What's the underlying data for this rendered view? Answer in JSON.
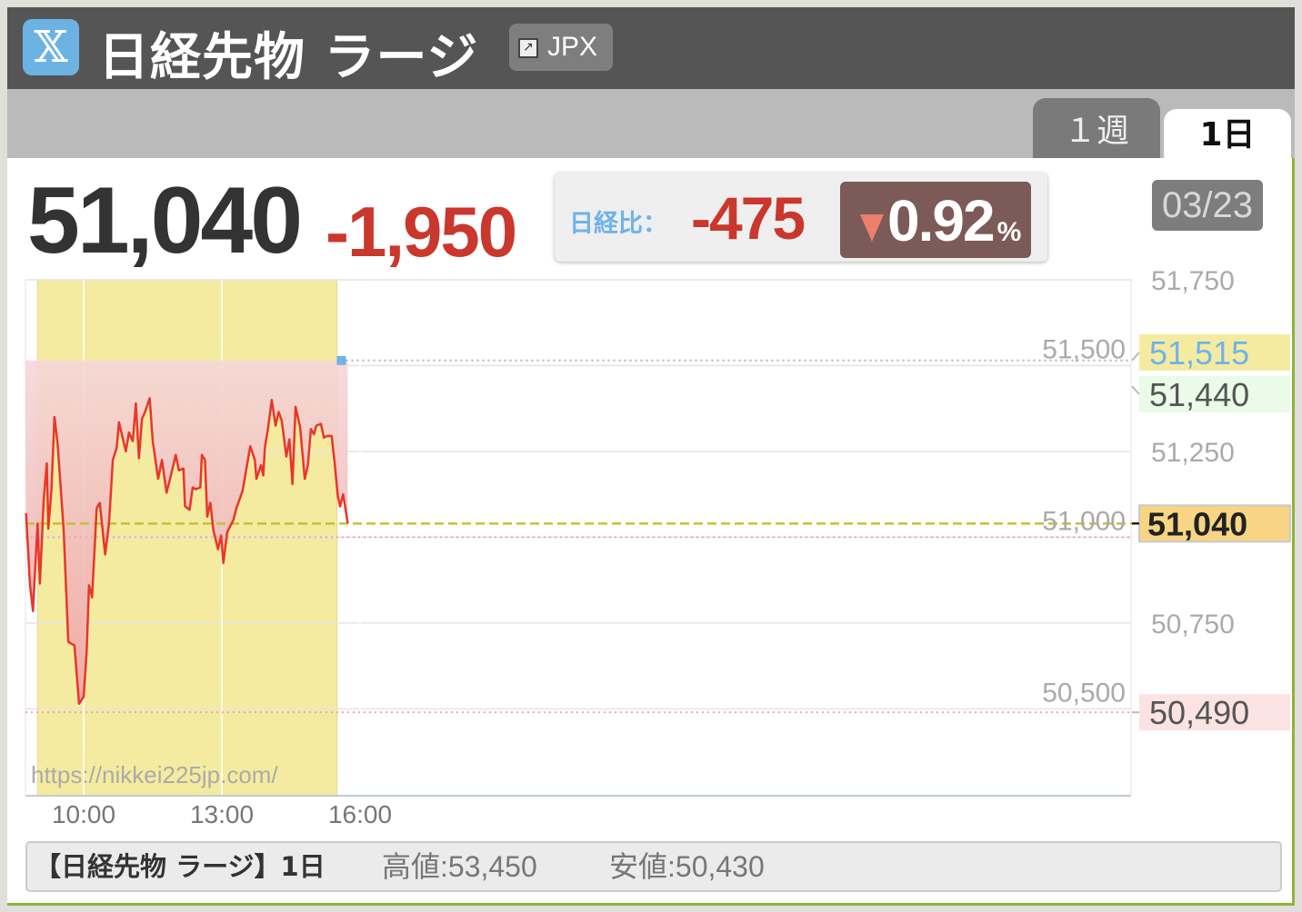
{
  "header": {
    "logo_icon": "x-logo-icon",
    "title": "日経先物 ラージ",
    "jpx_label": "JPX",
    "jpx_icon": "external-link-icon"
  },
  "tabs": [
    {
      "label": "１週",
      "active": false
    },
    {
      "label": "1日",
      "active": true
    }
  ],
  "quote": {
    "price": "51,040",
    "change": "-1,950",
    "compare_label": "日経比：",
    "compare_value": "-475",
    "compare_pct": "0.92",
    "pct_unit": "%",
    "direction_icon": "down-triangle-icon",
    "date": "03/23"
  },
  "colors": {
    "down": "#c9372d",
    "accent": "#6fb3ea",
    "session": "#f5eba0",
    "line": "#e8362a",
    "frame": "#8db33a"
  },
  "chart_data": {
    "type": "line",
    "xlabel": "",
    "ylabel": "",
    "x_ticks": [
      "10:00",
      "13:00",
      "16:00"
    ],
    "x_range": [
      "08:45",
      "23:10"
    ],
    "session": [
      "09:00",
      "15:30"
    ],
    "y_ticks": [
      "51,750",
      "51,500",
      "51,250",
      "51,000",
      "50,750",
      "50,500"
    ],
    "y_range": [
      50247,
      51750
    ],
    "markers": [
      {
        "label": "51,515",
        "value": 51515,
        "role": "high"
      },
      {
        "label": "51,440",
        "value": 51440,
        "role": "reference"
      },
      {
        "label": "51,040",
        "value": 51040,
        "role": "current"
      },
      {
        "label": "50,490",
        "value": 50490,
        "role": "low"
      }
    ],
    "watermark": "https://nikkei225jp.com/",
    "series": [
      {
        "points": [
          [
            "08:45",
            51070
          ],
          [
            "08:50",
            50865
          ],
          [
            "08:54",
            50785
          ],
          [
            "09:00",
            51040
          ],
          [
            "09:03",
            50865
          ],
          [
            "09:08",
            51110
          ],
          [
            "09:12",
            51215
          ],
          [
            "09:14",
            51025
          ],
          [
            "09:18",
            51135
          ],
          [
            "09:22",
            51350
          ],
          [
            "09:26",
            51275
          ],
          [
            "09:34",
            51020
          ],
          [
            "09:40",
            50695
          ],
          [
            "09:48",
            50685
          ],
          [
            "09:54",
            50515
          ],
          [
            "10:00",
            50535
          ],
          [
            "10:04",
            50670
          ],
          [
            "10:07",
            50860
          ],
          [
            "10:11",
            50825
          ],
          [
            "10:17",
            51085
          ],
          [
            "10:21",
            51100
          ],
          [
            "10:28",
            50950
          ],
          [
            "10:33",
            51040
          ],
          [
            "10:38",
            51225
          ],
          [
            "10:43",
            51260
          ],
          [
            "10:46",
            51335
          ],
          [
            "10:55",
            51250
          ],
          [
            "10:59",
            51305
          ],
          [
            "11:04",
            51280
          ],
          [
            "11:08",
            51390
          ],
          [
            "11:12",
            51230
          ],
          [
            "11:16",
            51345
          ],
          [
            "11:20",
            51365
          ],
          [
            "11:26",
            51405
          ],
          [
            "11:30",
            51280
          ],
          [
            "11:37",
            51170
          ],
          [
            "11:42",
            51225
          ],
          [
            "11:48",
            51130
          ],
          [
            "11:52",
            51165
          ],
          [
            "12:00",
            51240
          ],
          [
            "12:04",
            51195
          ],
          [
            "12:10",
            51200
          ],
          [
            "12:12",
            51090
          ],
          [
            "12:18",
            51080
          ],
          [
            "12:22",
            51145
          ],
          [
            "12:26",
            51140
          ],
          [
            "12:32",
            51145
          ],
          [
            "12:34",
            51240
          ],
          [
            "12:38",
            51225
          ],
          [
            "12:41",
            51060
          ],
          [
            "12:45",
            51100
          ],
          [
            "12:49",
            51020
          ],
          [
            "12:55",
            50965
          ],
          [
            "12:59",
            51005
          ],
          [
            "13:02",
            50925
          ],
          [
            "13:07",
            51015
          ],
          [
            "13:15",
            51050
          ],
          [
            "13:19",
            51085
          ],
          [
            "13:27",
            51135
          ],
          [
            "13:37",
            51265
          ],
          [
            "13:43",
            51225
          ],
          [
            "13:45",
            51170
          ],
          [
            "13:51",
            51210
          ],
          [
            "13:54",
            51180
          ],
          [
            "13:56",
            51260
          ],
          [
            "14:00",
            51315
          ],
          [
            "14:05",
            51400
          ],
          [
            "14:10",
            51325
          ],
          [
            "14:14",
            51365
          ],
          [
            "14:18",
            51340
          ],
          [
            "14:24",
            51235
          ],
          [
            "14:28",
            51285
          ],
          [
            "14:32",
            51155
          ],
          [
            "14:36",
            51380
          ],
          [
            "14:42",
            51320
          ],
          [
            "14:48",
            51170
          ],
          [
            "14:52",
            51210
          ],
          [
            "14:56",
            51315
          ],
          [
            "15:00",
            51300
          ],
          [
            "15:03",
            51325
          ],
          [
            "15:09",
            51330
          ],
          [
            "15:13",
            51290
          ],
          [
            "15:17",
            51295
          ],
          [
            "15:23",
            51295
          ],
          [
            "15:27",
            51215
          ],
          [
            "15:31",
            51120
          ],
          [
            "15:34",
            51090
          ],
          [
            "15:38",
            51125
          ],
          [
            "15:44",
            51040
          ]
        ]
      }
    ]
  },
  "footer": {
    "title": "【日経先物 ラージ】1日",
    "high": "高値:53,450",
    "low": "安値:50,430"
  }
}
